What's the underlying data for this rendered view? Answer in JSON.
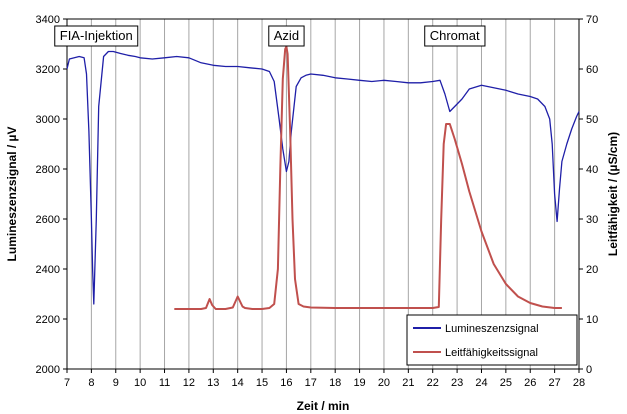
{
  "chart_data": {
    "type": "line",
    "title": "",
    "xlabel": "Zeit / min",
    "ylabel_left": "Lumineszenzsignal / µV",
    "ylabel_right": "Leitfähigkeit / (µS/cm)",
    "xlim": [
      7,
      28
    ],
    "ylim_left": [
      2000,
      3400
    ],
    "ylim_right": [
      0,
      70
    ],
    "x_ticks": [
      7,
      8,
      9,
      10,
      11,
      12,
      13,
      14,
      15,
      16,
      17,
      18,
      19,
      20,
      21,
      22,
      23,
      24,
      25,
      26,
      27,
      28
    ],
    "y_left_ticks": [
      2000,
      2200,
      2400,
      2600,
      2800,
      3000,
      3200,
      3400
    ],
    "y_right_ticks": [
      0,
      10,
      20,
      30,
      40,
      50,
      60,
      70
    ],
    "grid": "vertical",
    "legend_position": "bottom-right",
    "annotations": [
      {
        "text": "FIA-Injektion",
        "x": 8.2
      },
      {
        "text": "Azid",
        "x": 16.0
      },
      {
        "text": "Chromat",
        "x": 22.9
      }
    ],
    "series": [
      {
        "name": "Lumineszenzsignal",
        "axis": "left",
        "color": "#1f1fa8",
        "x": [
          7.0,
          7.1,
          7.3,
          7.5,
          7.7,
          7.8,
          7.9,
          8.0,
          8.05,
          8.1,
          8.2,
          8.3,
          8.5,
          8.7,
          8.9,
          9.2,
          9.5,
          9.8,
          10.0,
          10.5,
          11.0,
          11.5,
          12.0,
          12.5,
          13.0,
          13.5,
          14.0,
          14.5,
          15.0,
          15.3,
          15.5,
          15.7,
          15.85,
          16.0,
          16.1,
          16.2,
          16.4,
          16.6,
          16.8,
          17.0,
          17.5,
          18.0,
          18.5,
          19.0,
          19.5,
          20.0,
          20.5,
          21.0,
          21.5,
          22.0,
          22.3,
          22.5,
          22.7,
          22.9,
          23.2,
          23.5,
          24.0,
          24.5,
          25.0,
          25.5,
          26.0,
          26.3,
          26.6,
          26.8,
          26.9,
          27.0,
          27.1,
          27.2,
          27.3,
          27.5,
          27.7,
          27.9,
          28.0
        ],
        "y": [
          3200,
          3240,
          3245,
          3250,
          3245,
          3180,
          2950,
          2600,
          2400,
          2260,
          2600,
          3050,
          3250,
          3270,
          3270,
          3262,
          3255,
          3250,
          3245,
          3240,
          3245,
          3250,
          3245,
          3225,
          3215,
          3210,
          3210,
          3205,
          3200,
          3190,
          3150,
          3000,
          2880,
          2790,
          2830,
          2950,
          3130,
          3165,
          3175,
          3180,
          3175,
          3165,
          3160,
          3155,
          3150,
          3155,
          3150,
          3145,
          3145,
          3150,
          3155,
          3100,
          3030,
          3050,
          3080,
          3120,
          3135,
          3125,
          3115,
          3100,
          3090,
          3080,
          3050,
          3000,
          2900,
          2700,
          2590,
          2720,
          2830,
          2900,
          2960,
          3010,
          3030
        ]
      },
      {
        "name": "Leitfähigkeitssignal",
        "axis": "right",
        "color": "#c0504d",
        "x": [
          11.4,
          12.0,
          12.5,
          12.7,
          12.85,
          12.95,
          13.1,
          13.5,
          13.8,
          14.0,
          14.1,
          14.2,
          14.3,
          14.6,
          15.0,
          15.3,
          15.5,
          15.65,
          15.75,
          15.85,
          15.95,
          16.0,
          16.05,
          16.15,
          16.25,
          16.35,
          16.5,
          16.7,
          17.0,
          18.0,
          19.0,
          20.0,
          21.0,
          22.0,
          22.25,
          22.35,
          22.45,
          22.55,
          22.7,
          22.9,
          23.2,
          23.5,
          24.0,
          24.5,
          25.0,
          25.5,
          26.0,
          26.5,
          27.0,
          27.3
        ],
        "y": [
          12,
          12,
          12,
          12.2,
          14,
          12.8,
          12,
          12,
          12.3,
          14.5,
          13.5,
          12.5,
          12.2,
          12,
          12,
          12.2,
          13,
          20,
          40,
          58,
          64,
          64.5,
          63,
          48,
          30,
          18,
          13,
          12.5,
          12.3,
          12.2,
          12.2,
          12.2,
          12.2,
          12.2,
          12.4,
          30,
          45,
          49,
          49,
          46,
          41,
          35.5,
          27.5,
          21,
          17,
          14.5,
          13.2,
          12.5,
          12.2,
          12.2
        ]
      }
    ]
  }
}
